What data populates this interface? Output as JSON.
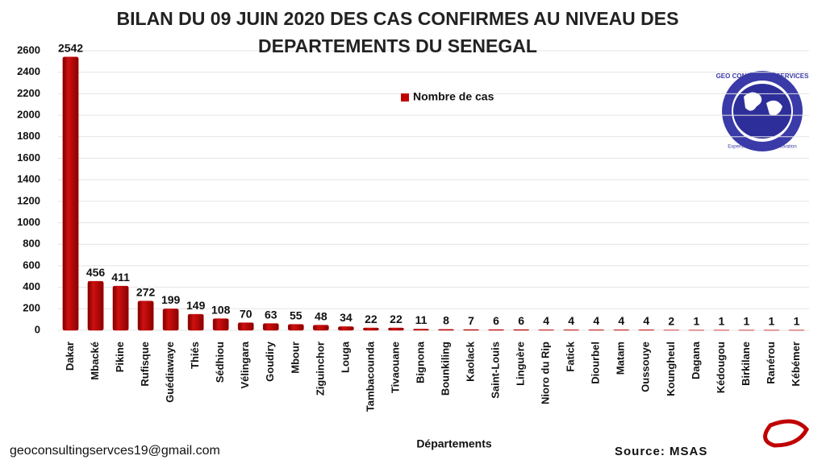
{
  "chart_data": {
    "type": "bar",
    "title": "BILAN DU 09 JUIN 2020 DES CAS CONFIRMES AU NIVEAU DES DEPARTEMENTS DU SENEGAL",
    "x_label": "Départements",
    "categories": [
      "Dakar",
      "Mbacké",
      "Pikine",
      "Rufisque",
      "Guédiawaye",
      "Thiés",
      "Sédhiou",
      "Vélingara",
      "Goudiry",
      "Mbour",
      "Ziguinchor",
      "Louga",
      "Tambacounda",
      "Tivaouane",
      "Bignona",
      "Bounkiling",
      "Kaolack",
      "Saint-Louis",
      "Linguère",
      "Nioro du Rip",
      "Fatick",
      "Diourbel",
      "Matam",
      "Oussouye",
      "Koungheul",
      "Dagana",
      "Kédougou",
      "Birkilane",
      "Ranérou",
      "Kébémer"
    ],
    "series": [
      {
        "name": "Nombre de cas",
        "color": "#c00000",
        "values": [
          2542,
          456,
          411,
          272,
          199,
          149,
          108,
          70,
          63,
          55,
          48,
          34,
          22,
          22,
          11,
          8,
          7,
          6,
          6,
          4,
          4,
          4,
          4,
          4,
          2,
          1,
          1,
          1,
          1,
          1
        ]
      }
    ],
    "ylim": [
      0,
      2600
    ],
    "yticks": [
      0,
      200,
      400,
      600,
      800,
      1000,
      1200,
      1400,
      1600,
      1800,
      2000,
      2200,
      2400,
      2600
    ],
    "grid": true,
    "legend": "top-center",
    "footer_left": "geoconsultingservces19@gmail.com",
    "source": "Source: MSAS"
  },
  "logo": {
    "title": "GEO CONSULTING SERVICES",
    "tagline": "Expertise, Rigueur et Innovation"
  }
}
